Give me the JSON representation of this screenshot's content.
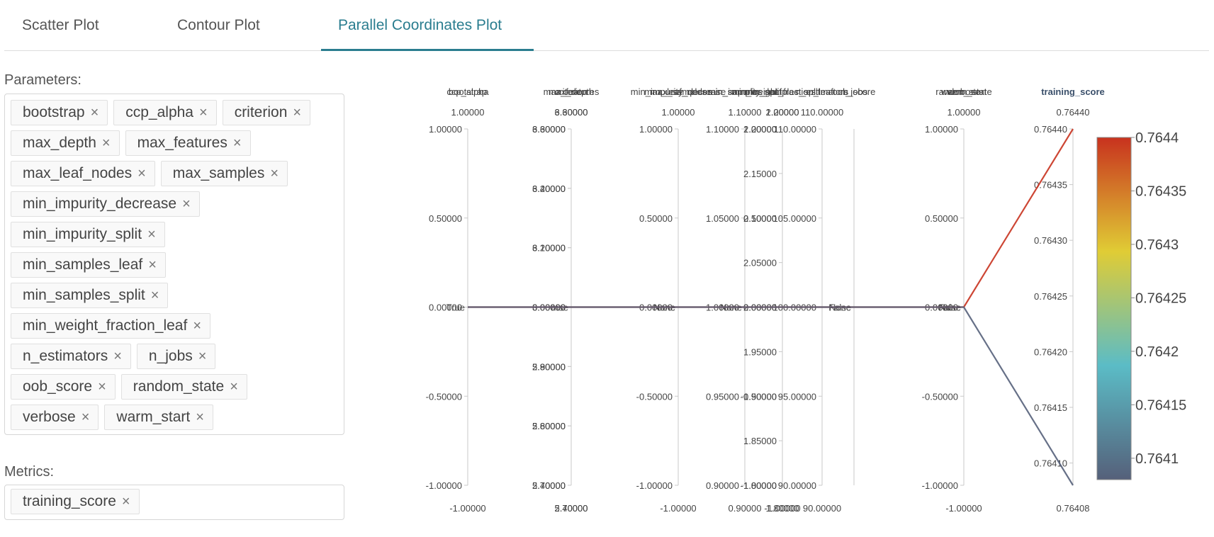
{
  "tabs": [
    {
      "label": "Scatter Plot"
    },
    {
      "label": "Contour Plot"
    },
    {
      "label": "Parallel Coordinates Plot"
    }
  ],
  "parameters": {
    "label": "Parameters:",
    "rows": [
      [
        "bootstrap",
        "ccp_alpha",
        "criterion"
      ],
      [
        "max_depth",
        "max_features"
      ],
      [
        "max_leaf_nodes",
        "max_samples"
      ],
      [
        "min_impurity_decrease"
      ],
      [
        "min_impurity_split"
      ],
      [
        "min_samples_leaf"
      ],
      [
        "min_samples_split"
      ],
      [
        "min_weight_fraction_leaf"
      ],
      [
        "n_estimators",
        "n_jobs"
      ],
      [
        "oob_score",
        "random_state"
      ],
      [
        "verbose",
        "warm_start"
      ]
    ],
    "remove_glyph": "×"
  },
  "metrics": {
    "label": "Metrics:",
    "items": [
      "training_score"
    ]
  },
  "chart_data": {
    "type": "parallel_coordinates",
    "color_metric": "training_score",
    "colorscale": [
      "#55607a",
      "#5bbcc6",
      "#e0cc35",
      "#c8321e"
    ],
    "colorbar": {
      "range": [
        0.76408,
        0.7644
      ],
      "ticks": [
        "0.7641",
        "0.76415",
        "0.7642",
        "0.76425",
        "0.7643",
        "0.76435",
        "0.7644"
      ]
    },
    "dimensions": [
      {
        "name": "bootstrap",
        "type": "category",
        "value": "True",
        "tick_labels": []
      },
      {
        "name": "ccp_alpha",
        "type": "numeric",
        "range": [
          -1,
          1
        ],
        "value": 0,
        "min_label": "-1.00000",
        "max_label": "1.00000",
        "tick_labels": [
          "-1.00000",
          "-0.50000",
          "0.00000",
          "0.50000",
          "1.00000"
        ]
      },
      {
        "name": "criterion",
        "type": "category",
        "value": "mse",
        "tick_labels": []
      },
      {
        "name": "max_depth",
        "type": "numeric",
        "range": [
          5.4,
          6.6
        ],
        "value": 6,
        "min_label": "5.40000",
        "max_label": "6.60000",
        "tick_labels": [
          "5.40000",
          "5.60000",
          "5.80000",
          "6.00000",
          "6.20000",
          "6.40000",
          "6.60000"
        ]
      },
      {
        "name": "max_features",
        "type": "numeric",
        "range": [
          2.7,
          3.3
        ],
        "value": 3,
        "min_label": "2.70000",
        "max_label": "3.30000",
        "tick_labels": [
          "2.70000",
          "2.80000",
          "2.90000",
          "3.00000",
          "3.10000",
          "3.20000",
          "3.30000"
        ]
      },
      {
        "name": "max_leaf_nodes",
        "type": "category",
        "value": "None",
        "tick_labels": []
      },
      {
        "name": "max_samples",
        "type": "category",
        "value": "None",
        "tick_labels": []
      },
      {
        "name": "min_impurity_decrease",
        "type": "numeric",
        "range": [
          -1,
          1
        ],
        "value": 0,
        "min_label": "-1.00000",
        "max_label": "1.00000",
        "tick_labels": [
          "-1.00000",
          "-0.50000",
          "0.00000",
          "0.50000",
          "1.00000"
        ]
      },
      {
        "name": "min_impurity_split",
        "type": "category",
        "value": "None",
        "tick_labels": []
      },
      {
        "name": "min_samples_leaf",
        "type": "numeric",
        "range": [
          0.9,
          1.1
        ],
        "value": 1,
        "min_label": "0.90000",
        "max_label": "1.10000",
        "tick_labels": [
          "0.90000",
          "0.95000",
          "1.00000",
          "1.05000",
          "1.10000"
        ]
      },
      {
        "name": "min_samples_split",
        "type": "numeric",
        "range": [
          1.8,
          2.2
        ],
        "value": 2,
        "min_label": "1.80000",
        "max_label": "2.20000",
        "tick_labels": [
          "1.80000",
          "1.85000",
          "1.90000",
          "1.95000",
          "2.00000",
          "2.05000",
          "2.10000",
          "2.15000",
          "2.20000"
        ]
      },
      {
        "name": "min_weight_fraction_leaf",
        "type": "numeric",
        "range": [
          -1,
          1
        ],
        "value": 0,
        "min_label": "-1.00000",
        "max_label": "1.00000",
        "tick_labels": [
          "-1.00000",
          "-0.50000",
          "0.00000",
          "0.50000",
          "1.00000"
        ]
      },
      {
        "name": "n_estimators",
        "type": "numeric",
        "range": [
          90,
          110
        ],
        "value": 100,
        "min_label": "90.00000",
        "max_label": "110.00000",
        "tick_labels": [
          "90.00000",
          "95.00000",
          "100.00000",
          "105.00000",
          "110.00000"
        ]
      },
      {
        "name": "n_jobs",
        "type": "category",
        "value": "None",
        "tick_labels": []
      },
      {
        "name": "oob_score",
        "type": "category",
        "value": "False",
        "tick_labels": []
      },
      {
        "name": "random_state",
        "type": "category",
        "value": "None",
        "tick_labels": []
      },
      {
        "name": "verbose",
        "type": "numeric",
        "range": [
          -1,
          1
        ],
        "value": 0,
        "min_label": "-1.00000",
        "max_label": "1.00000",
        "tick_labels": [
          "-1.00000",
          "-0.50000",
          "0.00000",
          "0.50000",
          "1.00000"
        ]
      },
      {
        "name": "warm_start",
        "type": "category",
        "value": "False",
        "tick_labels": []
      },
      {
        "name": "training_score",
        "type": "numeric",
        "range": [
          0.76408,
          0.7644
        ],
        "min_label": "0.76408",
        "max_label": "0.76440",
        "tick_labels": [
          "0.76410",
          "0.76415",
          "0.76420",
          "0.76425",
          "0.76430",
          "0.76435",
          "0.76440"
        ]
      }
    ],
    "lines": [
      {
        "training_score": 0.7644
      },
      {
        "training_score": 0.76408
      }
    ]
  }
}
